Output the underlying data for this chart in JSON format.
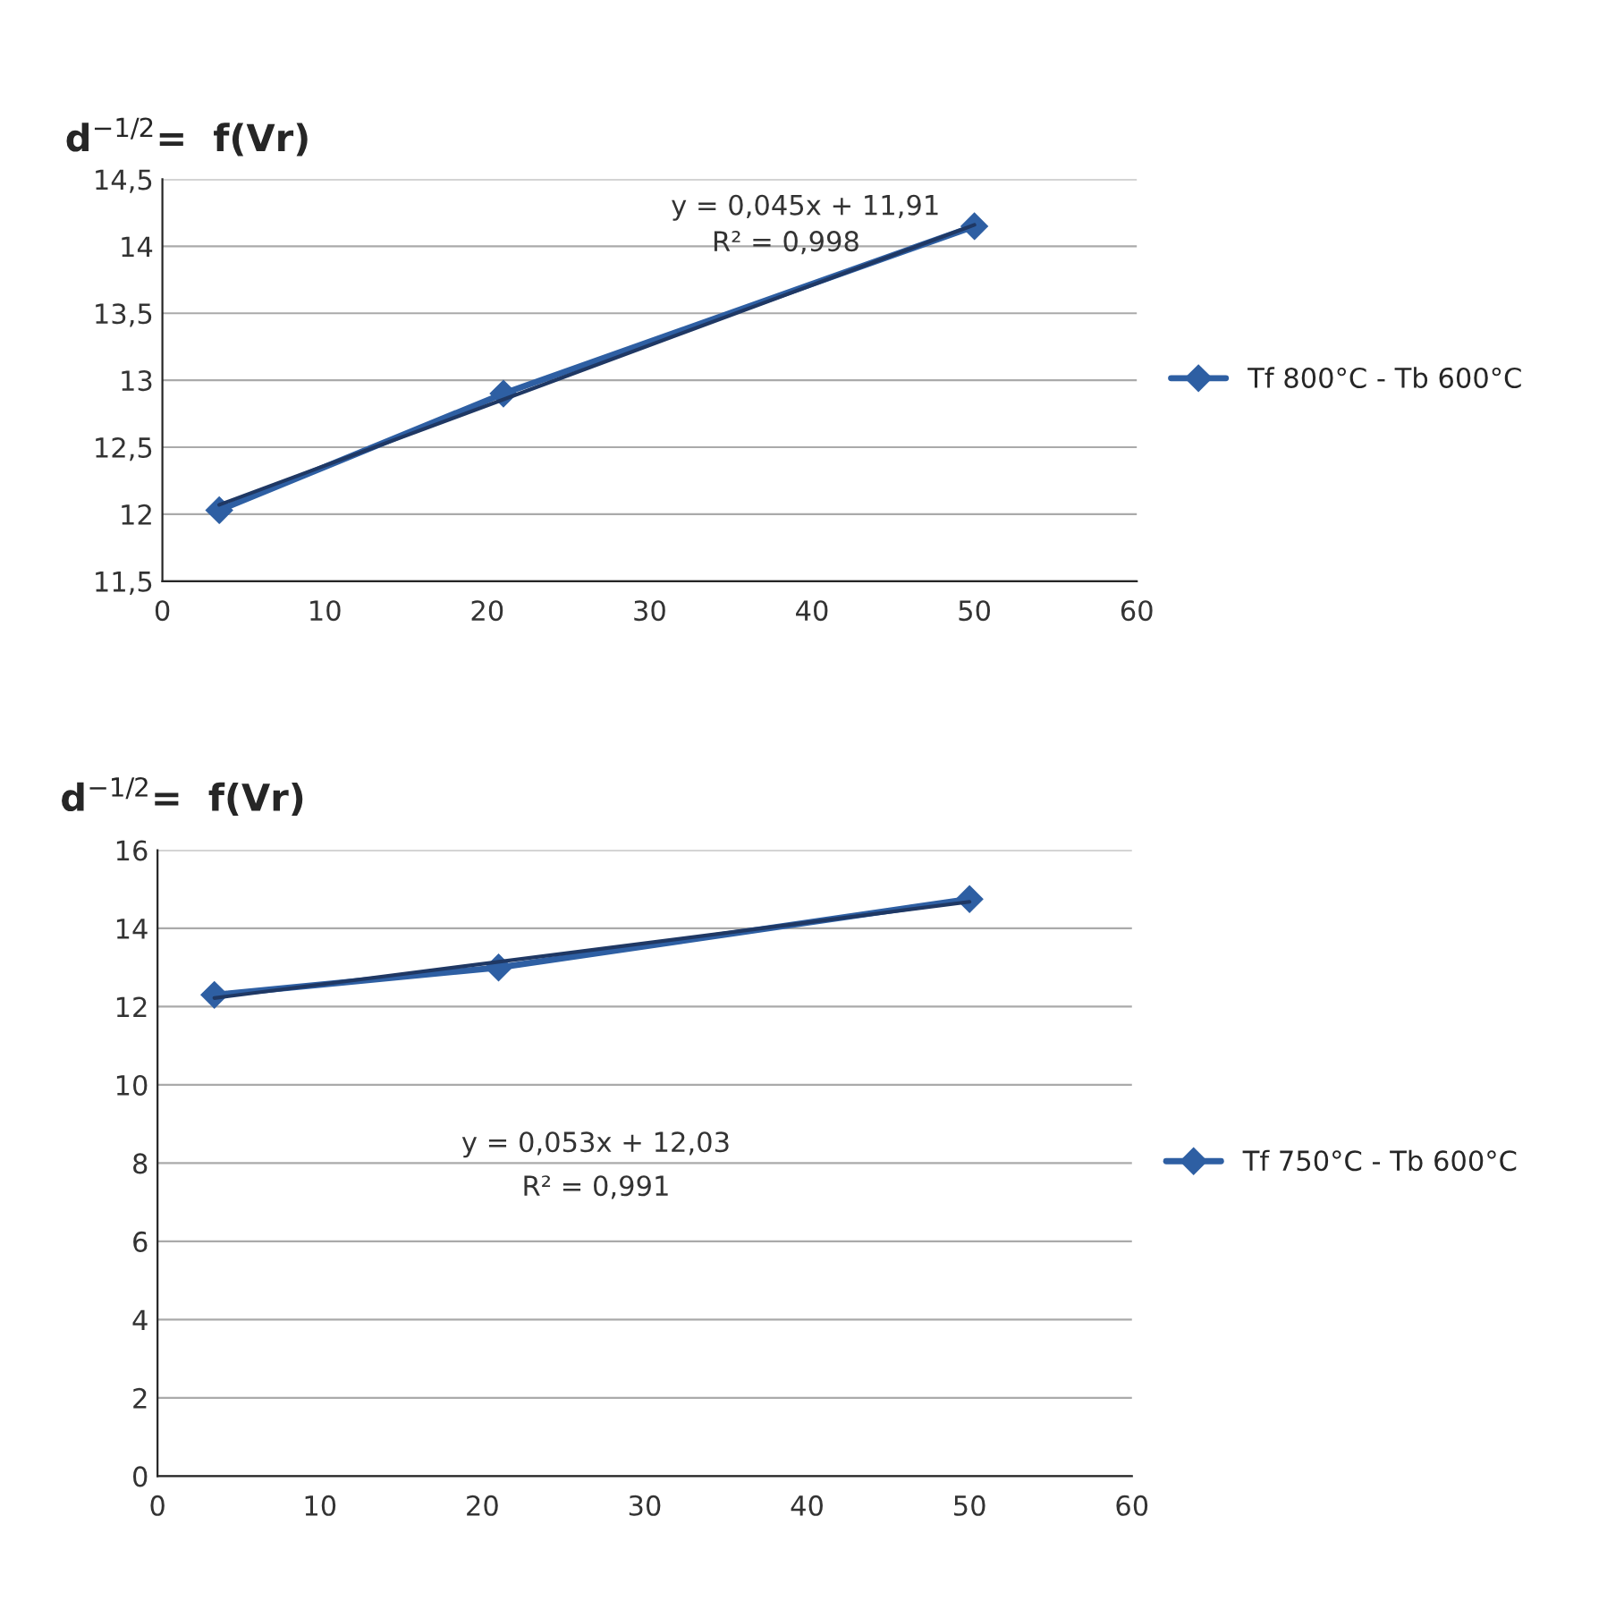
{
  "chart_data": [
    {
      "type": "line",
      "title": "d$^{−1/2}$=  f(Vr)",
      "marker": "diamond",
      "grid": "y",
      "legend": "right",
      "xlim": [
        0,
        60
      ],
      "xticks": [
        0,
        10,
        20,
        30,
        40,
        50,
        60
      ],
      "ylim": [
        11.5,
        14.5
      ],
      "yticks": [
        {
          "value": 11.5,
          "label": "11,5"
        },
        12,
        {
          "value": 12.5,
          "label": "12,5"
        },
        13,
        {
          "value": 13.5,
          "label": "13,5"
        },
        14,
        {
          "value": 14.5,
          "label": "14,5"
        }
      ],
      "series": [
        {
          "name": "Tf 800°C - Tb 600°C",
          "color": "#2e5fa3",
          "x": [
            3.5,
            21,
            50
          ],
          "values": [
            12.03,
            12.9,
            14.15
          ]
        },
        {
          "type": "line",
          "marker": "none",
          "color": "#1f3864",
          "x": [
            3.5,
            50
          ],
          "values": [
            12.07,
            14.16
          ]
        }
      ],
      "annotations": [
        "y = 0,045x + 11,91",
        "R² = 0,998"
      ]
    },
    {
      "type": "line",
      "title": "d$^{−1/2}$=  f(Vr)",
      "marker": "diamond",
      "grid": "y",
      "legend": "right",
      "xlim": [
        0,
        60
      ],
      "xticks": [
        0,
        10,
        20,
        30,
        40,
        50,
        60
      ],
      "ylim": [
        0,
        16
      ],
      "yticks": [
        0,
        2,
        4,
        6,
        8,
        10,
        12,
        14,
        16
      ],
      "series": [
        {
          "name": "Tf 750°C - Tb 600°C",
          "color": "#2e5fa3",
          "x": [
            3.5,
            21,
            50
          ],
          "values": [
            12.3,
            13.0,
            14.75
          ]
        },
        {
          "type": "line",
          "marker": "none",
          "color": "#1f3864",
          "x": [
            3.5,
            50
          ],
          "values": [
            12.22,
            14.68
          ]
        }
      ],
      "annotations": [
        "y = 0,053x + 12,03",
        "R² = 0,991"
      ]
    }
  ]
}
